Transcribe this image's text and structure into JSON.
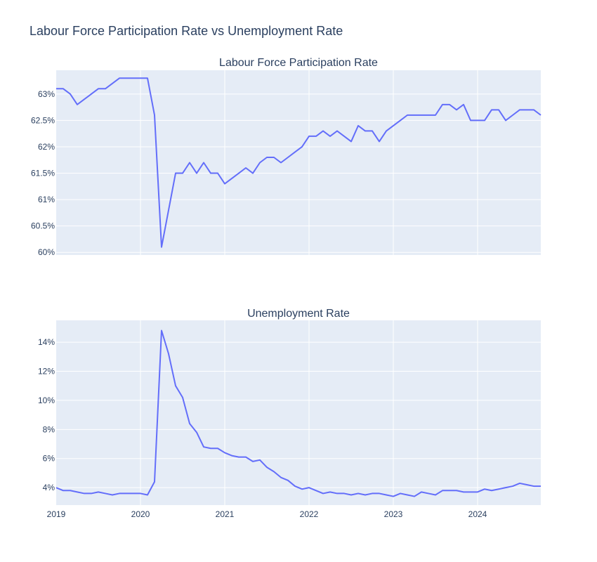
{
  "title": "Labour Force Participation Rate vs Unemployment Rate",
  "chart_data": [
    {
      "type": "line",
      "title": "Labour Force Participation Rate",
      "color": "#636efa",
      "y_tick_labels": [
        "60%",
        "60.5%",
        "61%",
        "61.5%",
        "62%",
        "62.5%",
        "63%"
      ],
      "y_ticks": [
        60,
        60.5,
        61,
        61.5,
        62,
        62.5,
        63
      ],
      "ylim": [
        59.95,
        63.45
      ],
      "x": [
        "2019-01",
        "2019-02",
        "2019-03",
        "2019-04",
        "2019-05",
        "2019-06",
        "2019-07",
        "2019-08",
        "2019-09",
        "2019-10",
        "2019-11",
        "2019-12",
        "2020-01",
        "2020-02",
        "2020-03",
        "2020-04",
        "2020-05",
        "2020-06",
        "2020-07",
        "2020-08",
        "2020-09",
        "2020-10",
        "2020-11",
        "2020-12",
        "2021-01",
        "2021-02",
        "2021-03",
        "2021-04",
        "2021-05",
        "2021-06",
        "2021-07",
        "2021-08",
        "2021-09",
        "2021-10",
        "2021-11",
        "2021-12",
        "2022-01",
        "2022-02",
        "2022-03",
        "2022-04",
        "2022-05",
        "2022-06",
        "2022-07",
        "2022-08",
        "2022-09",
        "2022-10",
        "2022-11",
        "2022-12",
        "2023-01",
        "2023-02",
        "2023-03",
        "2023-04",
        "2023-05",
        "2023-06",
        "2023-07",
        "2023-08",
        "2023-09",
        "2023-10",
        "2023-11",
        "2023-12",
        "2024-01",
        "2024-02",
        "2024-03",
        "2024-04",
        "2024-05",
        "2024-06",
        "2024-07",
        "2024-08",
        "2024-09",
        "2024-10"
      ],
      "values": [
        63.1,
        63.1,
        63.0,
        62.8,
        62.9,
        63.0,
        63.1,
        63.1,
        63.2,
        63.3,
        63.3,
        63.3,
        63.3,
        63.3,
        62.6,
        60.1,
        60.8,
        61.5,
        61.5,
        61.7,
        61.5,
        61.7,
        61.5,
        61.5,
        61.3,
        61.4,
        61.5,
        61.6,
        61.5,
        61.7,
        61.8,
        61.8,
        61.7,
        61.8,
        61.9,
        62.0,
        62.2,
        62.2,
        62.3,
        62.2,
        62.3,
        62.2,
        62.1,
        62.4,
        62.3,
        62.3,
        62.1,
        62.3,
        62.4,
        62.5,
        62.6,
        62.6,
        62.6,
        62.6,
        62.6,
        62.8,
        62.8,
        62.7,
        62.8,
        62.5,
        62.5,
        62.5,
        62.7,
        62.7,
        62.5,
        62.6,
        62.7,
        62.7,
        62.7,
        62.6
      ]
    },
    {
      "type": "line",
      "title": "Unemployment Rate",
      "color": "#636efa",
      "y_tick_labels": [
        "4%",
        "6%",
        "8%",
        "10%",
        "12%",
        "14%"
      ],
      "y_ticks": [
        4,
        6,
        8,
        10,
        12,
        14
      ],
      "ylim": [
        2.8,
        15.5
      ],
      "x_tick_labels": [
        "2019",
        "2020",
        "2021",
        "2022",
        "2023",
        "2024"
      ],
      "x": [
        "2019-01",
        "2019-02",
        "2019-03",
        "2019-04",
        "2019-05",
        "2019-06",
        "2019-07",
        "2019-08",
        "2019-09",
        "2019-10",
        "2019-11",
        "2019-12",
        "2020-01",
        "2020-02",
        "2020-03",
        "2020-04",
        "2020-05",
        "2020-06",
        "2020-07",
        "2020-08",
        "2020-09",
        "2020-10",
        "2020-11",
        "2020-12",
        "2021-01",
        "2021-02",
        "2021-03",
        "2021-04",
        "2021-05",
        "2021-06",
        "2021-07",
        "2021-08",
        "2021-09",
        "2021-10",
        "2021-11",
        "2021-12",
        "2022-01",
        "2022-02",
        "2022-03",
        "2022-04",
        "2022-05",
        "2022-06",
        "2022-07",
        "2022-08",
        "2022-09",
        "2022-10",
        "2022-11",
        "2022-12",
        "2023-01",
        "2023-02",
        "2023-03",
        "2023-04",
        "2023-05",
        "2023-06",
        "2023-07",
        "2023-08",
        "2023-09",
        "2023-10",
        "2023-11",
        "2023-12",
        "2024-01",
        "2024-02",
        "2024-03",
        "2024-04",
        "2024-05",
        "2024-06",
        "2024-07",
        "2024-08",
        "2024-09",
        "2024-10"
      ],
      "values": [
        4.0,
        3.8,
        3.8,
        3.7,
        3.6,
        3.6,
        3.7,
        3.6,
        3.5,
        3.6,
        3.6,
        3.6,
        3.6,
        3.5,
        4.4,
        14.8,
        13.2,
        11.0,
        10.2,
        8.4,
        7.8,
        6.8,
        6.7,
        6.7,
        6.4,
        6.2,
        6.1,
        6.1,
        5.8,
        5.9,
        5.4,
        5.1,
        4.7,
        4.5,
        4.1,
        3.9,
        4.0,
        3.8,
        3.6,
        3.7,
        3.6,
        3.6,
        3.5,
        3.6,
        3.5,
        3.6,
        3.6,
        3.5,
        3.4,
        3.6,
        3.5,
        3.4,
        3.7,
        3.6,
        3.5,
        3.8,
        3.8,
        3.8,
        3.7,
        3.7,
        3.7,
        3.9,
        3.8,
        3.9,
        4.0,
        4.1,
        4.3,
        4.2,
        4.1,
        4.1
      ]
    }
  ]
}
